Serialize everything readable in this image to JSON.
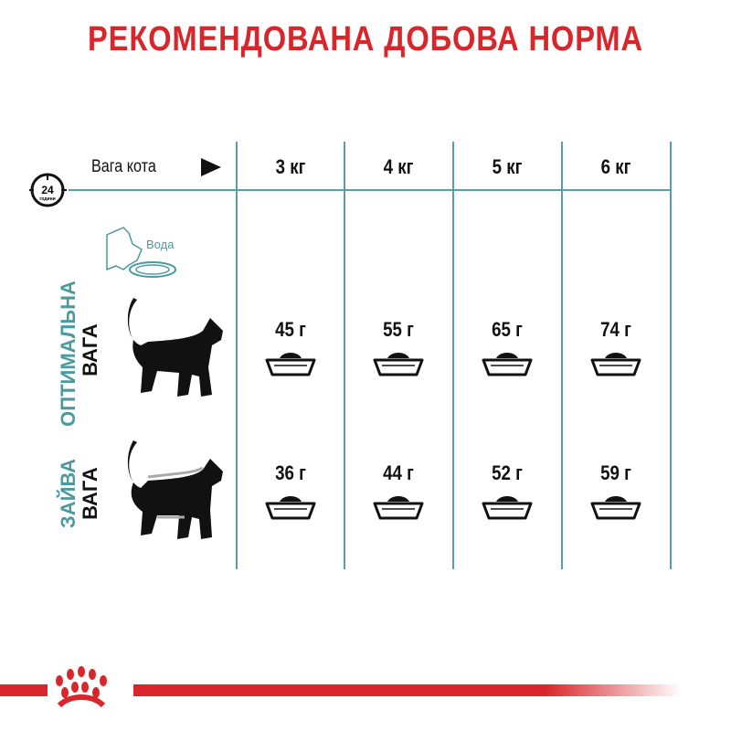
{
  "title": "РЕКОМЕНДОВАНА ДОБОВА НОРМА",
  "clock": {
    "icon": "24-hour-clock-icon",
    "number": "24",
    "label": "години"
  },
  "weight_label": "Вага кота",
  "columns": [
    "3 кг",
    "4 кг",
    "5 кг",
    "6 кг"
  ],
  "water_label": "Вода",
  "rows": [
    {
      "label_top": "ОПТИМАЛЬНА",
      "label_bottom": "ВАГА",
      "values": [
        "45 г",
        "55 г",
        "65 г",
        "74 г"
      ]
    },
    {
      "label_top": "ЗАЙВА",
      "label_bottom": "ВАГА",
      "values": [
        "36 г",
        "44 г",
        "52 г",
        "59 г"
      ]
    }
  ],
  "colors": {
    "accent_red": "#d8262a",
    "teal": "#4a9aa0"
  }
}
